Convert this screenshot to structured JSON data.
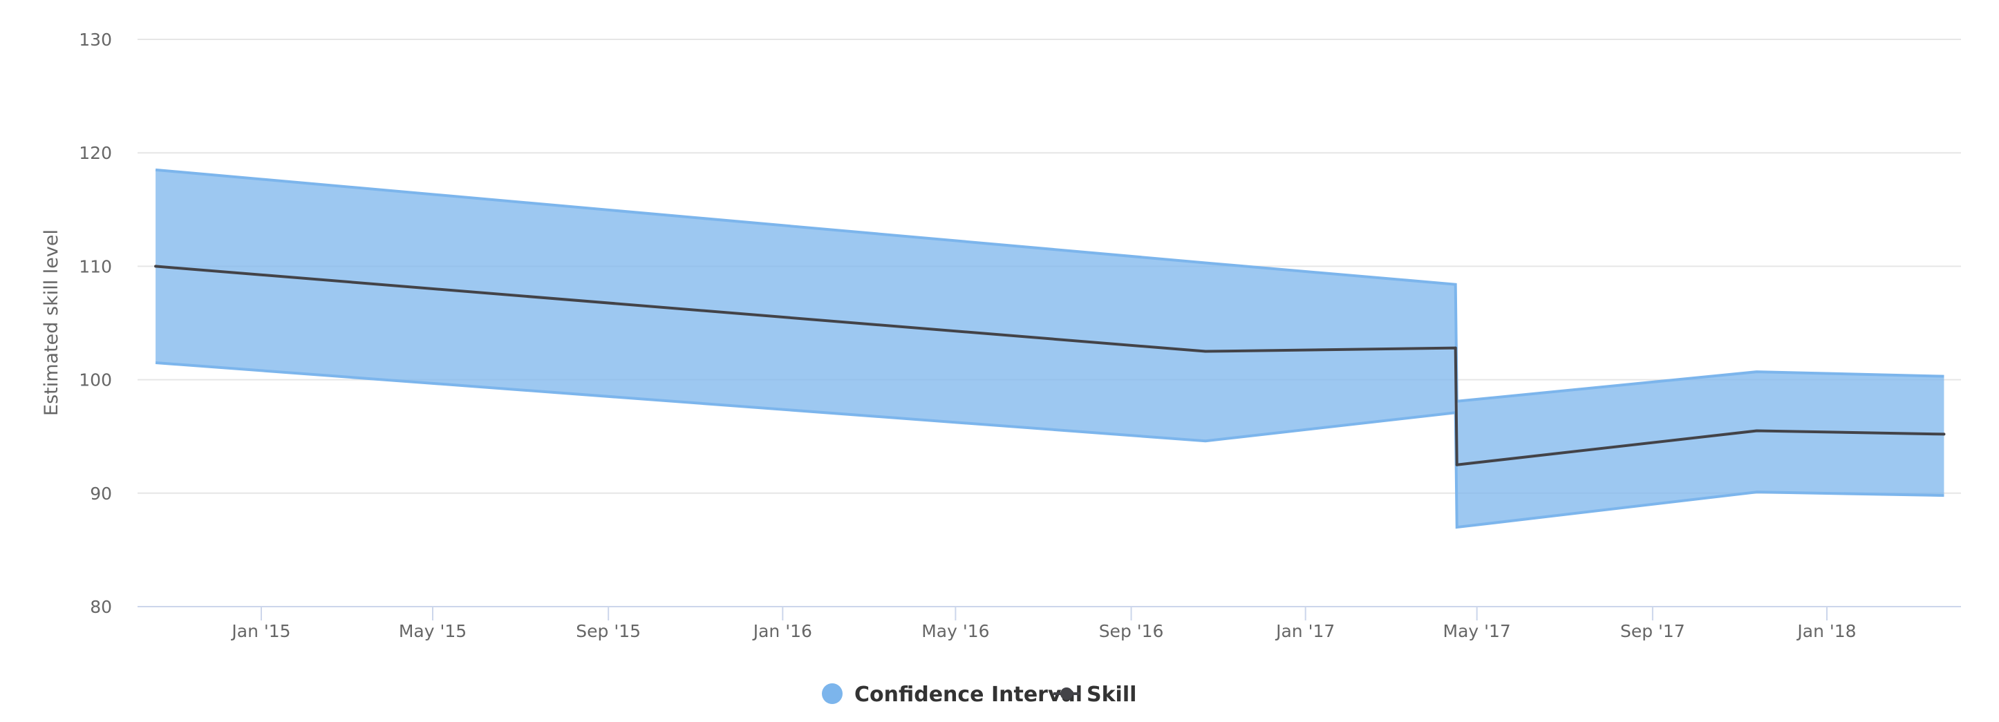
{
  "chart_data": {
    "type": "area",
    "title": "",
    "xlabel": "",
    "ylabel": "Estimated skill level",
    "ylim": [
      80,
      130
    ],
    "yticks": [
      "80",
      "90",
      "100",
      "110",
      "120",
      "130"
    ],
    "xticks": [
      {
        "date": "2015-01-01",
        "label": "Jan '15"
      },
      {
        "date": "2015-05-01",
        "label": "May '15"
      },
      {
        "date": "2015-09-01",
        "label": "Sep '15"
      },
      {
        "date": "2016-01-01",
        "label": "Jan '16"
      },
      {
        "date": "2016-05-01",
        "label": "May '16"
      },
      {
        "date": "2016-09-01",
        "label": "Sep '16"
      },
      {
        "date": "2017-01-01",
        "label": "Jan '17"
      },
      {
        "date": "2017-05-01",
        "label": "May '17"
      },
      {
        "date": "2017-09-01",
        "label": "Sep '17"
      },
      {
        "date": "2018-01-01",
        "label": "Jan '18"
      }
    ],
    "grid": true,
    "legend_position": "bottom-center",
    "x": [
      "2014-10-19",
      "2016-10-23",
      "2017-04-16",
      "2017-04-17",
      "2017-11-13",
      "2018-03-24"
    ],
    "series": [
      {
        "name": "Confidence Interval",
        "type": "arearange",
        "color": "#7cb5ec",
        "low": [
          101.5,
          94.6,
          97.1,
          87.0,
          90.1,
          89.8
        ],
        "high": [
          118.5,
          110.3,
          108.4,
          98.1,
          100.7,
          100.3
        ]
      },
      {
        "name": "Skill",
        "type": "line",
        "color": "#434348",
        "values": [
          110.0,
          102.5,
          102.8,
          92.5,
          95.5,
          95.2
        ]
      }
    ]
  }
}
